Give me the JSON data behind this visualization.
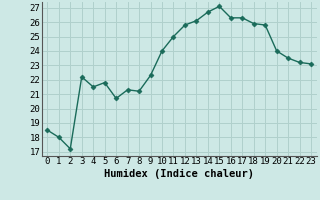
{
  "x": [
    0,
    1,
    2,
    3,
    4,
    5,
    6,
    7,
    8,
    9,
    10,
    11,
    12,
    13,
    14,
    15,
    16,
    17,
    18,
    19,
    20,
    21,
    22,
    23
  ],
  "y": [
    18.5,
    18.0,
    17.2,
    22.2,
    21.5,
    21.8,
    20.7,
    21.3,
    21.2,
    22.3,
    24.0,
    25.0,
    25.8,
    26.1,
    26.7,
    27.1,
    26.3,
    26.3,
    25.9,
    25.8,
    24.0,
    23.5,
    23.2,
    23.1
  ],
  "line_color": "#1a6b5a",
  "marker": "D",
  "marker_size": 2.5,
  "bg_color": "#cde8e5",
  "grid_color": "#b0d0cc",
  "xlabel": "Humidex (Indice chaleur)",
  "ylabel_ticks": [
    17,
    18,
    19,
    20,
    21,
    22,
    23,
    24,
    25,
    26,
    27
  ],
  "ylim": [
    16.7,
    27.4
  ],
  "xlim": [
    -0.5,
    23.5
  ],
  "xticks": [
    0,
    1,
    2,
    3,
    4,
    5,
    6,
    7,
    8,
    9,
    10,
    11,
    12,
    13,
    14,
    15,
    16,
    17,
    18,
    19,
    20,
    21,
    22,
    23
  ],
  "xlabel_fontsize": 7.5,
  "tick_fontsize": 6.5,
  "linewidth": 1.0
}
